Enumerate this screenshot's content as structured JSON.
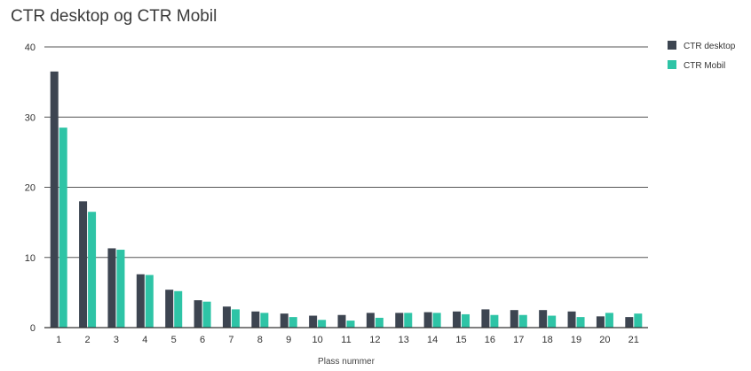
{
  "chart_data": {
    "type": "bar",
    "title": "CTR desktop og CTR Mobil",
    "xlabel": "Plass nummer",
    "ylabel": "",
    "ylim": [
      0,
      40
    ],
    "yticks": [
      0,
      10,
      20,
      30,
      40
    ],
    "grid": "horizontal",
    "legend_position": "top-right",
    "categories": [
      "1",
      "2",
      "3",
      "4",
      "5",
      "6",
      "7",
      "8",
      "9",
      "10",
      "11",
      "12",
      "13",
      "14",
      "15",
      "16",
      "17",
      "18",
      "19",
      "20",
      "21"
    ],
    "series": [
      {
        "name": "CTR desktop",
        "color": "#3d4551",
        "values": [
          36.5,
          18.0,
          11.3,
          7.6,
          5.4,
          3.9,
          3.0,
          2.3,
          2.0,
          1.7,
          1.8,
          2.1,
          2.1,
          2.2,
          2.3,
          2.6,
          2.5,
          2.5,
          2.3,
          1.6,
          1.5
        ]
      },
      {
        "name": "CTR Mobil",
        "color": "#2ec4a6",
        "values": [
          28.5,
          16.5,
          11.1,
          7.5,
          5.2,
          3.7,
          2.6,
          2.1,
          1.5,
          1.1,
          1.0,
          1.4,
          2.1,
          2.1,
          1.9,
          1.8,
          1.8,
          1.7,
          1.5,
          2.1,
          2.0
        ]
      }
    ]
  }
}
